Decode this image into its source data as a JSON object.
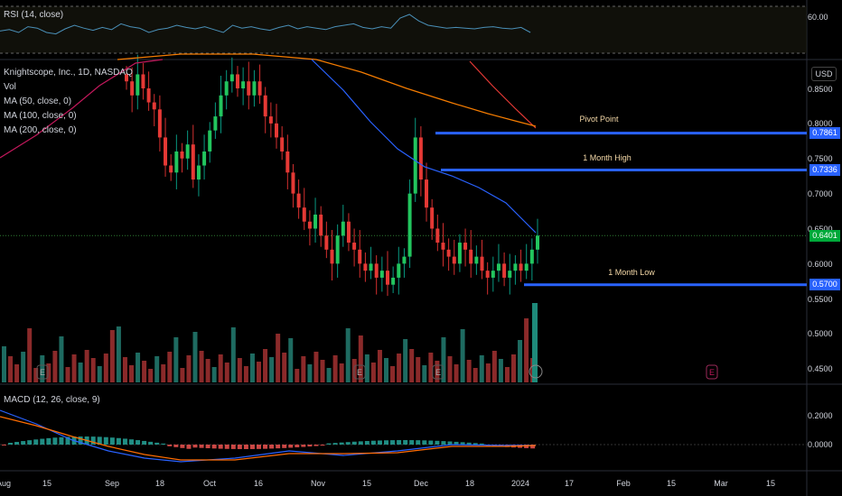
{
  "rsi_panel": {
    "label": "RSI (14, close)",
    "axis_value": "60.00"
  },
  "main_panel": {
    "legend": [
      "Knightscope, Inc., 1D, NASDAQ",
      "Vol",
      "MA (50, close, 0)",
      "MA (100, close, 0)",
      "MA (200, close, 0)"
    ],
    "currency": "USD",
    "price_axis": [
      "0.8500",
      "0.8000",
      "0.7500",
      "0.7000",
      "0.6500",
      "0.6000",
      "0.5500",
      "0.5000",
      "0.4500"
    ],
    "price_tags": [
      {
        "text": "0.7861",
        "color": "#2962ff"
      },
      {
        "text": "0.7336",
        "color": "#2962ff"
      },
      {
        "text": "0.6401",
        "color": "#00a93a"
      },
      {
        "text": "0.5700",
        "color": "#2962ff"
      }
    ],
    "level_labels": [
      "Pivot Point",
      "1 Month High",
      "1 Month Low"
    ],
    "earnings_markers": [
      "E",
      "E",
      "E",
      "E"
    ]
  },
  "macd_panel": {
    "label": "MACD (12, 26, close, 9)",
    "axis": [
      "0.2000",
      "0.0000"
    ]
  },
  "time_axis": [
    "Aug",
    "15",
    "Sep",
    "18",
    "Oct",
    "16",
    "Nov",
    "15",
    "Dec",
    "18",
    "2024",
    "17",
    "Feb",
    "15",
    "Mar",
    "15"
  ],
  "chart_data": {
    "type": "candlestick",
    "symbol": "Knightscope, Inc.",
    "timeframe": "1D",
    "exchange": "NASDAQ",
    "levels": {
      "pivot_point": 0.7861,
      "one_month_high": 0.7336,
      "one_month_low": 0.57,
      "last": 0.6401
    },
    "closes": [
      0.86,
      0.84,
      0.87,
      0.85,
      0.83,
      0.82,
      0.78,
      0.74,
      0.73,
      0.76,
      0.75,
      0.77,
      0.72,
      0.74,
      0.76,
      0.79,
      0.81,
      0.84,
      0.86,
      0.87,
      0.85,
      0.86,
      0.84,
      0.86,
      0.84,
      0.81,
      0.8,
      0.78,
      0.76,
      0.73,
      0.7,
      0.68,
      0.66,
      0.65,
      0.67,
      0.64,
      0.62,
      0.6,
      0.64,
      0.66,
      0.63,
      0.62,
      0.6,
      0.59,
      0.6,
      0.58,
      0.59,
      0.57,
      0.58,
      0.6,
      0.61,
      0.7,
      0.78,
      0.72,
      0.68,
      0.65,
      0.63,
      0.62,
      0.61,
      0.6,
      0.63,
      0.62,
      0.6,
      0.61,
      0.59,
      0.58,
      0.59,
      0.6,
      0.58,
      0.59,
      0.6,
      0.59,
      0.6,
      0.62,
      0.64
    ]
  }
}
